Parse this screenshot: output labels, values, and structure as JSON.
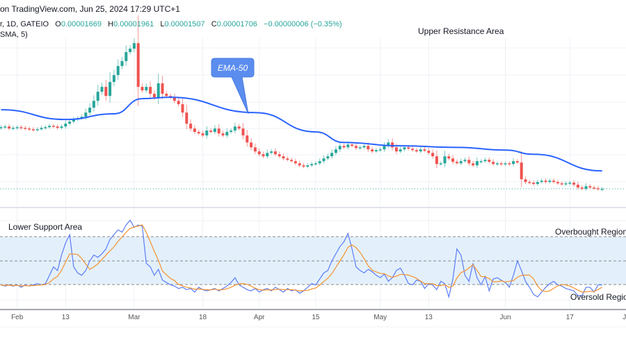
{
  "header": {
    "source": "on TradingView.com, Jun 25, 2024 17:29 UTC+1",
    "symbol_meta": "r, 1D, GATEIO",
    "open_label": "O",
    "open": "0.00001669",
    "high_label": "H",
    "high": "0.00001961",
    "low_label": "L",
    "low": "0.00001507",
    "close_label": "C",
    "close": "0.00001706",
    "change": "−0.00000006 (−0.35%)",
    "indicator_legend": "SMA, 5)"
  },
  "annotations": {
    "upper_resistance": "Upper Resistance Area",
    "ema_callout": "EMA-50",
    "lower_support": "Lower Support Area",
    "overbought": "Overbought Region",
    "oversold": "Oversold Regio"
  },
  "colors": {
    "up": "#26a69a",
    "down": "#ef5350",
    "ema": "#2962ff",
    "rsi": "#5b7cf5",
    "rsi_signal": "#f5922f",
    "callout": "#5b8def",
    "band": "#e3f0fc",
    "grid": "#edf1f6"
  },
  "chart_data": [
    {
      "type": "candlestick",
      "start_date": "2024-01-28",
      "closes": [
        2.161e-05,
        2.166e-05,
        2.151e-05,
        2.156e-05,
        2.161e-05,
        2.156e-05,
        2.151e-05,
        2.146e-05,
        2.141e-05,
        2.146e-05,
        2.156e-05,
        2.161e-05,
        2.171e-05,
        2.166e-05,
        2.156e-05,
        2.166e-05,
        2.187e-05,
        2.202e-05,
        2.218e-05,
        2.228e-05,
        2.238e-05,
        2.269e-05,
        2.305e-05,
        2.356e-05,
        2.423e-05,
        2.459e-05,
        2.392e-05,
        2.495e-05,
        2.546e-05,
        2.613e-05,
        2.649e-05,
        2.716e-05,
        2.741e-05,
        2.782e-05,
        2.459e-05,
        2.433e-05,
        2.459e-05,
        2.408e-05,
        2.382e-05,
        2.485e-05,
        2.408e-05,
        2.392e-05,
        2.382e-05,
        2.356e-05,
        2.331e-05,
        2.269e-05,
        2.187e-05,
        2.151e-05,
        2.126e-05,
        2.115e-05,
        2.1e-05,
        2.136e-05,
        2.126e-05,
        2.151e-05,
        2.115e-05,
        2.1e-05,
        2.126e-05,
        2.136e-05,
        2.166e-05,
        2.151e-05,
        2.1e-05,
        2.048e-05,
        2.012e-05,
        1.982e-05,
        1.961e-05,
        1.946e-05,
        1.971e-05,
        1.982e-05,
        1.961e-05,
        1.946e-05,
        1.93e-05,
        1.92e-05,
        1.91e-05,
        1.894e-05,
        1.879e-05,
        1.869e-05,
        1.879e-05,
        1.889e-05,
        1.894e-05,
        1.91e-05,
        1.93e-05,
        1.946e-05,
        1.971e-05,
        1.997e-05,
        2.023e-05,
        2.012e-05,
        2.033e-05,
        2.023e-05,
        2.007e-05,
        2.012e-05,
        2.023e-05,
        1.997e-05,
        1.982e-05,
        1.992e-05,
        1.997e-05,
        2.023e-05,
        2.048e-05,
        2.012e-05,
        1.982e-05,
        1.997e-05,
        2.012e-05,
        2.002e-05,
        1.992e-05,
        1.982e-05,
        1.997e-05,
        1.987e-05,
        1.971e-05,
        1.946e-05,
        1.889e-05,
        1.894e-05,
        1.946e-05,
        1.93e-05,
        1.905e-05,
        1.894e-05,
        1.91e-05,
        1.92e-05,
        1.894e-05,
        1.879e-05,
        1.91e-05,
        1.91e-05,
        1.92e-05,
        1.905e-05,
        1.889e-05,
        1.894e-05,
        1.889e-05,
        1.894e-05,
        1.889e-05,
        1.91e-05,
        1.9e-05,
        1.776e-05,
        1.756e-05,
        1.751e-05,
        1.741e-05,
        1.756e-05,
        1.766e-05,
        1.756e-05,
        1.766e-05,
        1.756e-05,
        1.746e-05,
        1.741e-05,
        1.746e-05,
        1.751e-05,
        1.736e-05,
        1.715e-05,
        1.705e-05,
        1.725e-05,
        1.715e-05,
        1.71e-05,
        1.705e-05,
        1.706e-05
      ],
      "ema_50": [
        [
          "2024-01-28",
          2.29e-05
        ],
        [
          "2024-02-13",
          2.218e-05
        ],
        [
          "2024-02-25",
          2.26e-05
        ],
        [
          "2024-03-03",
          2.372e-05
        ],
        [
          "2024-03-10",
          2.382e-05
        ],
        [
          "2024-03-31",
          2.269e-05
        ],
        [
          "2024-04-15",
          2.126e-05
        ],
        [
          "2024-04-22",
          2.048e-05
        ],
        [
          "2024-05-06",
          2.023e-05
        ],
        [
          "2024-05-20",
          2.012e-05
        ],
        [
          "2024-06-01",
          1.992e-05
        ],
        [
          "2024-06-08",
          1.961e-05
        ],
        [
          "2024-06-25",
          1.838e-05
        ]
      ],
      "last_price": 1.706e-05
    },
    {
      "type": "line",
      "ylim": [
        0,
        100
      ],
      "levels": [
        30,
        50,
        70
      ],
      "signal": "SMA, 5",
      "values": [
        30,
        29,
        30,
        29,
        30,
        28,
        30,
        29,
        30,
        31,
        30,
        31,
        38,
        45,
        42,
        55,
        65,
        72,
        45,
        40,
        38,
        42,
        50,
        55,
        53,
        56,
        60,
        68,
        72,
        76,
        74,
        80,
        84,
        78,
        80,
        79,
        48,
        45,
        38,
        43,
        34,
        32,
        30,
        29,
        27,
        28,
        26,
        27,
        24,
        28,
        26,
        25,
        26,
        27,
        25,
        27,
        29,
        32,
        36,
        30,
        28,
        26,
        25,
        27,
        24,
        26,
        27,
        25,
        28,
        26,
        24,
        27,
        25,
        26,
        23,
        25,
        28,
        31,
        30,
        35,
        40,
        42,
        50,
        56,
        62,
        66,
        73,
        60,
        45,
        42,
        40,
        43,
        41,
        38,
        36,
        39,
        33,
        36,
        42,
        44,
        38,
        31,
        30,
        34,
        33,
        27,
        31,
        30,
        26,
        33,
        31,
        20,
        35,
        60,
        55,
        38,
        33,
        48,
        36,
        30,
        37,
        25,
        35,
        36,
        34,
        32,
        28,
        38,
        50,
        42,
        33,
        28,
        22,
        20,
        24,
        28,
        31,
        33,
        30,
        29,
        27,
        26,
        25,
        21,
        21,
        28,
        28,
        24,
        30,
        30
      ]
    }
  ],
  "x_axis": {
    "ticks": [
      {
        "label": "Feb",
        "date": "2024-02-01"
      },
      {
        "label": "13",
        "date": "2024-02-13"
      },
      {
        "label": "Mar",
        "date": "2024-03-01"
      },
      {
        "label": "18",
        "date": "2024-03-18"
      },
      {
        "label": "Apr",
        "date": "2024-04-01"
      },
      {
        "label": "15",
        "date": "2024-04-15"
      },
      {
        "label": "May",
        "date": "2024-05-01"
      },
      {
        "label": "13",
        "date": "2024-05-13"
      },
      {
        "label": "Jun",
        "date": "2024-06-01"
      },
      {
        "label": "17",
        "date": "2024-06-17"
      },
      {
        "label": "Ju",
        "date": "2024-07-01"
      }
    ]
  }
}
